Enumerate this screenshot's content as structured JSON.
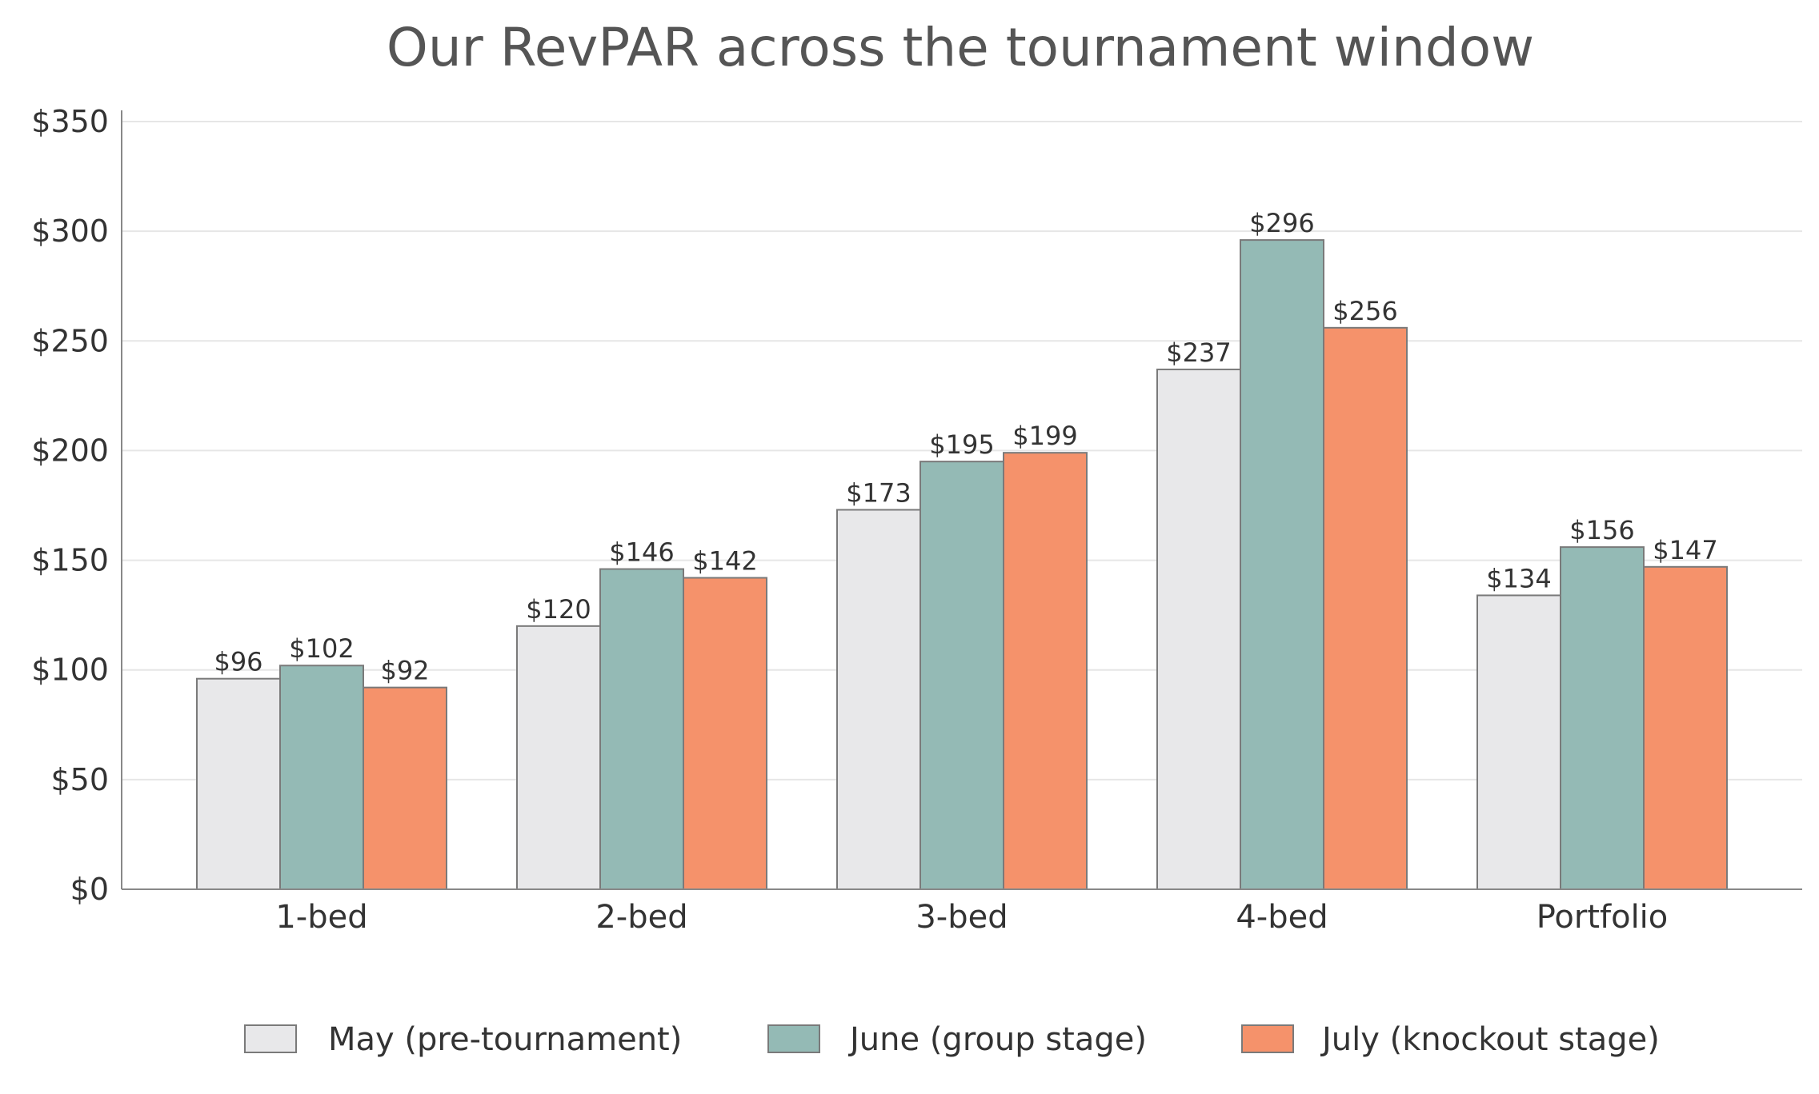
{
  "chart_data": {
    "type": "bar",
    "title": "Our RevPAR across the tournament window",
    "xlabel": "",
    "ylabel": "",
    "categories": [
      "1-bed",
      "2-bed",
      "3-bed",
      "4-bed",
      "Portfolio"
    ],
    "series": [
      {
        "name": "May (pre-tournament)",
        "color": "#e8e8ea",
        "values": [
          96,
          120,
          173,
          237,
          134
        ],
        "labels": [
          "$96",
          "$120",
          "$173",
          "$237",
          "$134"
        ]
      },
      {
        "name": "June (group stage)",
        "color": "#94bab5",
        "values": [
          102,
          146,
          195,
          296,
          156
        ],
        "labels": [
          "$102",
          "$146",
          "$195",
          "$296",
          "$156"
        ]
      },
      {
        "name": "July (knockout stage)",
        "color": "#f5926b",
        "values": [
          92,
          142,
          199,
          256,
          147
        ],
        "labels": [
          "$92",
          "$142",
          "$199",
          "$256",
          "$147"
        ]
      }
    ],
    "ylim": [
      0,
      350
    ],
    "yticks": [
      0,
      50,
      100,
      150,
      200,
      250,
      300,
      350
    ],
    "ytick_labels": [
      "$0",
      "$50",
      "$100",
      "$150",
      "$200",
      "$250",
      "$300",
      "$350"
    ],
    "grid": true,
    "legend_position": "bottom"
  }
}
